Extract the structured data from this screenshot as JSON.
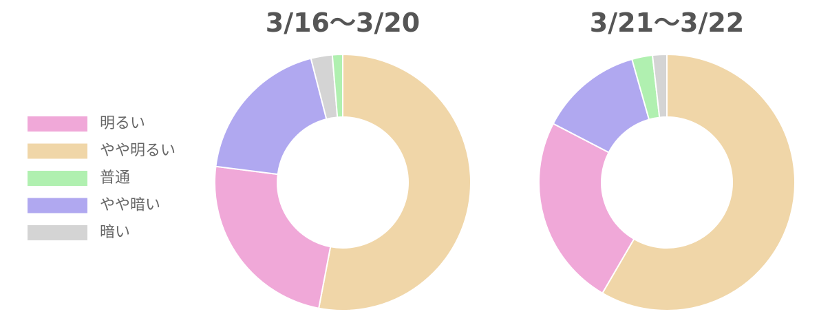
{
  "legend": [
    {
      "name": "明るい",
      "color": "#f0a8d8"
    },
    {
      "name": "やや明るい",
      "color": "#f0d6a8"
    },
    {
      "name": "普通",
      "color": "#b0f0b0"
    },
    {
      "name": "やや暗い",
      "color": "#b0a8f0"
    },
    {
      "name": "暗い",
      "color": "#d4d4d4"
    }
  ],
  "chart_data": [
    {
      "type": "donut",
      "title": "3/16〜3/20",
      "categories": [
        "やや明るい",
        "明るい",
        "やや暗い",
        "暗い",
        "普通"
      ],
      "values": [
        53,
        24,
        19,
        2.7,
        1.3
      ],
      "colors": [
        "#f0d6a8",
        "#f0a8d8",
        "#b0a8f0",
        "#d4d4d4",
        "#b0f0b0"
      ]
    },
    {
      "type": "donut",
      "title": "3/21〜3/22",
      "categories": [
        "やや明るい",
        "明るい",
        "やや暗い",
        "普通",
        "暗い"
      ],
      "values": [
        58.4,
        24.2,
        13,
        2.6,
        1.8
      ],
      "colors": [
        "#f0d6a8",
        "#f0a8d8",
        "#b0a8f0",
        "#b0f0b0",
        "#d4d4d4"
      ]
    }
  ]
}
